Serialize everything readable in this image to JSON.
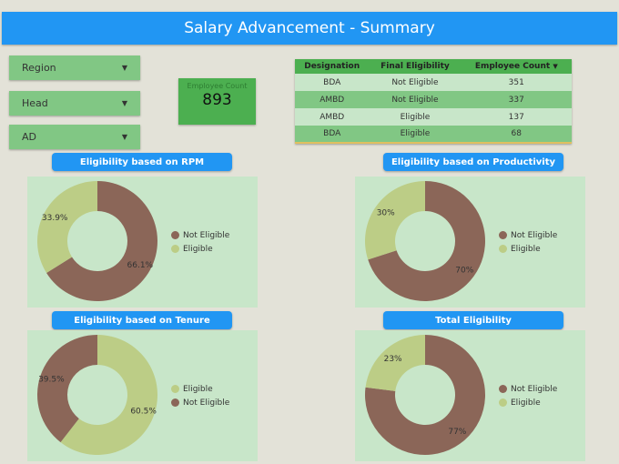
{
  "header": {
    "title": "Salary Advancement - Summary"
  },
  "filters": [
    {
      "label": "Region"
    },
    {
      "label": "Head"
    },
    {
      "label": "AD"
    }
  ],
  "kpi": {
    "label": "Employee Count",
    "value": "893"
  },
  "table": {
    "headers": [
      "Designation",
      "Final Eligibility",
      "Employee Count"
    ],
    "sort_icon": "caret-down-icon",
    "rows": [
      [
        "BDA",
        "Not Eligible",
        "351"
      ],
      [
        "AMBD",
        "Not Eligible",
        "337"
      ],
      [
        "AMBD",
        "Eligible",
        "137"
      ],
      [
        "BDA",
        "Eligible",
        "68"
      ]
    ]
  },
  "colors": {
    "Not Eligible": "#8b6658",
    "Eligible": "#bccd86",
    "accent": "#2196f3"
  },
  "chart_data": [
    {
      "type": "pie",
      "title": "Eligibility based on RPM",
      "categories": [
        "Not Eligible",
        "Eligible"
      ],
      "values": [
        66.1,
        33.9
      ],
      "labels": [
        "66.1%",
        "33.9%"
      ],
      "legend": "right"
    },
    {
      "type": "pie",
      "title": "Eligibility based on Productivity",
      "categories": [
        "Not Eligible",
        "Eligible"
      ],
      "values": [
        70,
        30
      ],
      "labels": [
        "70%",
        "30%"
      ],
      "legend": "right"
    },
    {
      "type": "pie",
      "title": "Eligibility based on Tenure",
      "categories": [
        "Eligible",
        "Not Eligible"
      ],
      "values": [
        60.5,
        39.5
      ],
      "labels": [
        "60.5%",
        "39.5%"
      ],
      "legend": "right"
    },
    {
      "type": "pie",
      "title": "Total Eligibility",
      "categories": [
        "Not Eligible",
        "Eligible"
      ],
      "values": [
        77,
        23
      ],
      "labels": [
        "77%",
        "23%"
      ],
      "legend": "right"
    }
  ]
}
